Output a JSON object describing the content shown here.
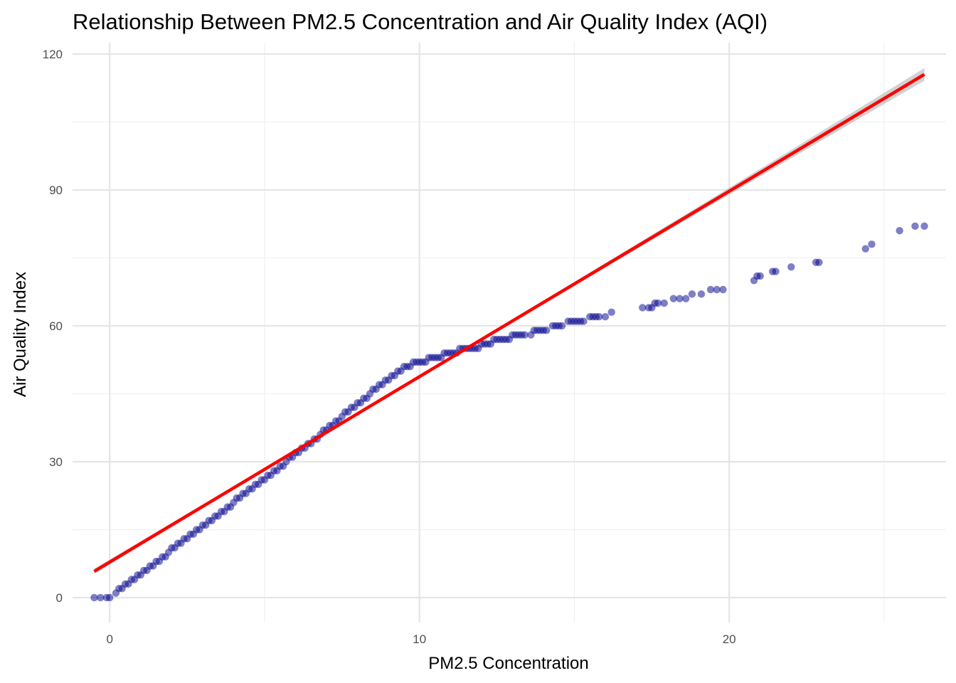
{
  "chart_data": {
    "type": "scatter",
    "title": "Relationship Between PM2.5 Concentration and Air Quality Index (AQI)",
    "xlabel": "PM2.5 Concentration",
    "ylabel": "Air Quality Index",
    "xlim": [
      -1.2,
      27.0
    ],
    "ylim": [
      -5.5,
      122.5
    ],
    "x_ticks": [
      0,
      10,
      20
    ],
    "y_ticks": [
      0,
      30,
      60,
      90,
      120
    ],
    "x_minor_ticks": [
      5,
      15,
      25
    ],
    "y_minor_ticks": [
      15,
      45,
      75,
      105
    ],
    "grid": true,
    "legend": "none",
    "colors": {
      "points": "#00008b",
      "trend_line": "#ff0000",
      "confidence_band": "#bfbfbf",
      "grid": "#e5e5e5"
    },
    "trend_line": {
      "method": "linear",
      "x": [
        -0.5,
        26.3
      ],
      "y": [
        5.8,
        115.5
      ]
    },
    "series": [
      {
        "points": [
          [
            -0.5,
            0
          ],
          [
            -0.3,
            0
          ],
          [
            -0.1,
            0
          ],
          [
            0.0,
            0
          ],
          [
            0.2,
            1
          ],
          [
            0.3,
            2
          ],
          [
            0.4,
            2
          ],
          [
            0.5,
            3
          ],
          [
            0.6,
            3
          ],
          [
            0.7,
            4
          ],
          [
            0.8,
            4
          ],
          [
            0.9,
            5
          ],
          [
            1.0,
            5
          ],
          [
            1.1,
            6
          ],
          [
            1.2,
            6
          ],
          [
            1.3,
            7
          ],
          [
            1.4,
            7
          ],
          [
            1.5,
            8
          ],
          [
            1.6,
            8
          ],
          [
            1.7,
            9
          ],
          [
            1.8,
            9
          ],
          [
            1.9,
            10
          ],
          [
            2.0,
            11
          ],
          [
            2.1,
            11
          ],
          [
            2.2,
            12
          ],
          [
            2.3,
            12
          ],
          [
            2.4,
            13
          ],
          [
            2.5,
            13
          ],
          [
            2.6,
            14
          ],
          [
            2.7,
            14
          ],
          [
            2.8,
            15
          ],
          [
            2.9,
            15
          ],
          [
            3.0,
            16
          ],
          [
            3.1,
            16
          ],
          [
            3.2,
            17
          ],
          [
            3.3,
            17
          ],
          [
            3.4,
            18
          ],
          [
            3.5,
            18
          ],
          [
            3.6,
            19
          ],
          [
            3.7,
            19
          ],
          [
            3.8,
            20
          ],
          [
            3.9,
            20
          ],
          [
            4.0,
            21
          ],
          [
            4.1,
            22
          ],
          [
            4.2,
            22
          ],
          [
            4.3,
            23
          ],
          [
            4.4,
            23
          ],
          [
            4.5,
            24
          ],
          [
            4.6,
            24
          ],
          [
            4.7,
            25
          ],
          [
            4.8,
            25
          ],
          [
            4.9,
            26
          ],
          [
            5.0,
            26
          ],
          [
            5.1,
            27
          ],
          [
            5.2,
            27
          ],
          [
            5.3,
            28
          ],
          [
            5.4,
            28
          ],
          [
            5.5,
            29
          ],
          [
            5.6,
            29
          ],
          [
            5.7,
            30
          ],
          [
            5.8,
            31
          ],
          [
            5.9,
            31
          ],
          [
            6.0,
            32
          ],
          [
            6.1,
            32
          ],
          [
            6.2,
            33
          ],
          [
            6.3,
            33
          ],
          [
            6.4,
            34
          ],
          [
            6.5,
            34
          ],
          [
            6.6,
            35
          ],
          [
            6.7,
            35
          ],
          [
            6.8,
            36
          ],
          [
            6.9,
            37
          ],
          [
            7.0,
            37
          ],
          [
            7.1,
            38
          ],
          [
            7.2,
            38
          ],
          [
            7.3,
            39
          ],
          [
            7.4,
            39
          ],
          [
            7.5,
            40
          ],
          [
            7.6,
            41
          ],
          [
            7.7,
            41
          ],
          [
            7.8,
            42
          ],
          [
            7.9,
            42
          ],
          [
            8.0,
            43
          ],
          [
            8.1,
            43
          ],
          [
            8.2,
            44
          ],
          [
            8.3,
            44
          ],
          [
            8.4,
            45
          ],
          [
            8.5,
            46
          ],
          [
            8.6,
            46
          ],
          [
            8.7,
            47
          ],
          [
            8.8,
            47
          ],
          [
            8.9,
            48
          ],
          [
            9.0,
            48
          ],
          [
            9.1,
            49
          ],
          [
            9.2,
            49
          ],
          [
            9.3,
            50
          ],
          [
            9.4,
            50
          ],
          [
            9.5,
            51
          ],
          [
            9.6,
            51
          ],
          [
            9.7,
            51
          ],
          [
            9.8,
            52
          ],
          [
            9.9,
            52
          ],
          [
            10.0,
            52
          ],
          [
            10.1,
            52
          ],
          [
            10.2,
            52
          ],
          [
            10.3,
            53
          ],
          [
            10.4,
            53
          ],
          [
            10.5,
            53
          ],
          [
            10.6,
            53
          ],
          [
            10.7,
            53
          ],
          [
            10.8,
            54
          ],
          [
            10.9,
            54
          ],
          [
            11.0,
            54
          ],
          [
            11.1,
            54
          ],
          [
            11.2,
            54
          ],
          [
            11.3,
            55
          ],
          [
            11.4,
            55
          ],
          [
            11.5,
            55
          ],
          [
            11.6,
            55
          ],
          [
            11.7,
            55
          ],
          [
            11.8,
            55
          ],
          [
            11.9,
            55
          ],
          [
            12.0,
            56
          ],
          [
            12.1,
            56
          ],
          [
            12.2,
            56
          ],
          [
            12.3,
            56
          ],
          [
            12.4,
            57
          ],
          [
            12.5,
            57
          ],
          [
            12.6,
            57
          ],
          [
            12.7,
            57
          ],
          [
            12.8,
            57
          ],
          [
            12.9,
            57
          ],
          [
            13.0,
            58
          ],
          [
            13.1,
            58
          ],
          [
            13.2,
            58
          ],
          [
            13.3,
            58
          ],
          [
            13.4,
            58
          ],
          [
            13.6,
            58
          ],
          [
            13.7,
            59
          ],
          [
            13.8,
            59
          ],
          [
            13.9,
            59
          ],
          [
            14.0,
            59
          ],
          [
            14.1,
            59
          ],
          [
            14.3,
            60
          ],
          [
            14.4,
            60
          ],
          [
            14.5,
            60
          ],
          [
            14.6,
            60
          ],
          [
            14.8,
            61
          ],
          [
            14.9,
            61
          ],
          [
            15.0,
            61
          ],
          [
            15.1,
            61
          ],
          [
            15.2,
            61
          ],
          [
            15.3,
            61
          ],
          [
            15.5,
            62
          ],
          [
            15.6,
            62
          ],
          [
            15.7,
            62
          ],
          [
            15.8,
            62
          ],
          [
            16.0,
            62
          ],
          [
            16.2,
            63
          ],
          [
            17.2,
            64
          ],
          [
            17.4,
            64
          ],
          [
            17.5,
            64
          ],
          [
            17.6,
            65
          ],
          [
            17.7,
            65
          ],
          [
            17.9,
            65
          ],
          [
            18.2,
            66
          ],
          [
            18.4,
            66
          ],
          [
            18.6,
            66
          ],
          [
            18.8,
            67
          ],
          [
            19.1,
            67
          ],
          [
            19.4,
            68
          ],
          [
            19.6,
            68
          ],
          [
            19.8,
            68
          ],
          [
            20.8,
            70
          ],
          [
            20.9,
            71
          ],
          [
            21.0,
            71
          ],
          [
            21.4,
            72
          ],
          [
            21.5,
            72
          ],
          [
            22.0,
            73
          ],
          [
            22.8,
            74
          ],
          [
            22.9,
            74
          ],
          [
            24.4,
            77
          ],
          [
            24.6,
            78
          ],
          [
            25.5,
            81
          ],
          [
            26.0,
            82
          ],
          [
            26.3,
            82
          ]
        ]
      }
    ]
  }
}
